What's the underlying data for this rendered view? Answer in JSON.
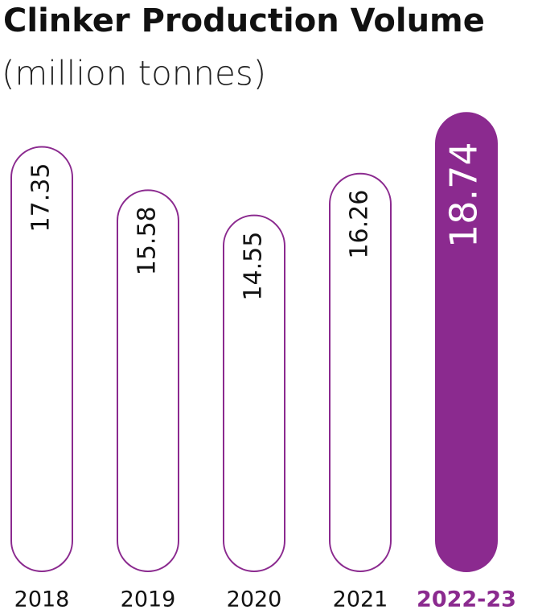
{
  "chart_data": {
    "type": "bar",
    "title": "Clinker Production Volume",
    "subtitle": "(million tonnes)",
    "categories": [
      "2018",
      "2019",
      "2020",
      "2021",
      "2022-23"
    ],
    "values": [
      17.35,
      15.58,
      14.55,
      16.26,
      18.74
    ],
    "colors": [
      "#ffffff",
      "#ffffff",
      "#ffffff",
      "#ffffff",
      "#8b2a8f"
    ],
    "edge_color": "#8b2a8f",
    "ylim": [
      0,
      20
    ]
  }
}
